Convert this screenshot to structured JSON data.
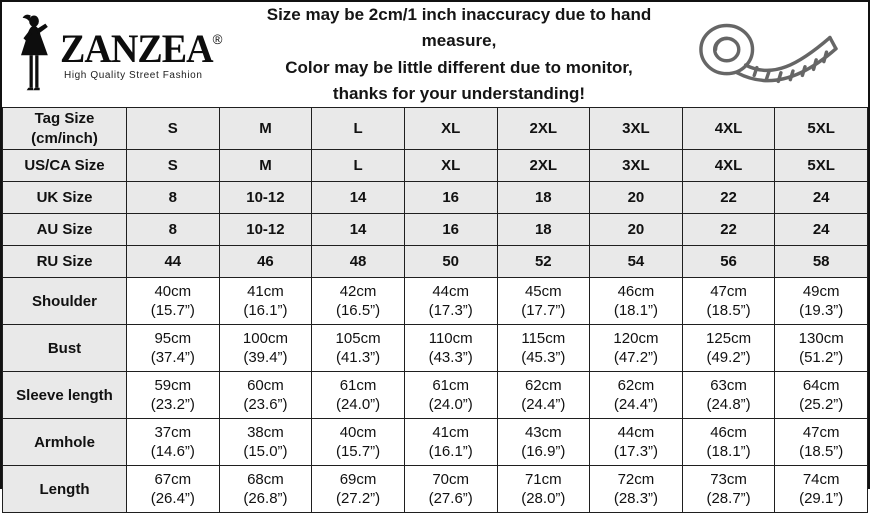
{
  "colors": {
    "cell_shaded": "#e9e9e9",
    "cell_plain": "#ffffff",
    "grid_border": "#1f1f1f",
    "frame_border": "#111111",
    "text": "#111111",
    "icon_gray": "#666666"
  },
  "header": {
    "logo": {
      "brand": "ZANZEA",
      "registered_mark": "®",
      "tagline": "High Quality Street Fashion"
    },
    "disclaimer_lines": [
      "Size may be 2cm/1 inch inaccuracy due to hand measure,",
      "Color may be little different due to monitor,",
      "thanks for your understanding!"
    ]
  },
  "table": {
    "rows": [
      {
        "label": "Tag Size\n(cm/inch)",
        "shaded": true,
        "values": [
          "S",
          "M",
          "L",
          "XL",
          "2XL",
          "3XL",
          "4XL",
          "5XL"
        ]
      },
      {
        "label": "US/CA Size",
        "shaded": true,
        "values": [
          "S",
          "M",
          "L",
          "XL",
          "2XL",
          "3XL",
          "4XL",
          "5XL"
        ]
      },
      {
        "label": "UK Size",
        "shaded": true,
        "values": [
          "8",
          "10-12",
          "14",
          "16",
          "18",
          "20",
          "22",
          "24"
        ]
      },
      {
        "label": "AU Size",
        "shaded": true,
        "values": [
          "8",
          "10-12",
          "14",
          "16",
          "18",
          "20",
          "22",
          "24"
        ]
      },
      {
        "label": "RU Size",
        "shaded": true,
        "values": [
          "44",
          "46",
          "48",
          "50",
          "52",
          "54",
          "56",
          "58"
        ]
      },
      {
        "label": "Shoulder",
        "shaded": false,
        "values": [
          "40cm\n(15.7”)",
          "41cm\n(16.1”)",
          "42cm\n(16.5”)",
          "44cm\n(17.3”)",
          "45cm\n(17.7”)",
          "46cm\n(18.1”)",
          "47cm\n(18.5”)",
          "49cm\n(19.3”)"
        ]
      },
      {
        "label": "Bust",
        "shaded": false,
        "values": [
          "95cm\n(37.4”)",
          "100cm\n(39.4”)",
          "105cm\n(41.3”)",
          "110cm\n(43.3”)",
          "115cm\n(45.3”)",
          "120cm\n(47.2”)",
          "125cm\n(49.2”)",
          "130cm\n(51.2”)"
        ]
      },
      {
        "label": "Sleeve length",
        "shaded": false,
        "values": [
          "59cm\n(23.2”)",
          "60cm\n(23.6”)",
          "61cm\n(24.0”)",
          "61cm\n(24.0”)",
          "62cm\n(24.4”)",
          "62cm\n(24.4”)",
          "63cm\n(24.8”)",
          "64cm\n(25.2”)"
        ]
      },
      {
        "label": "Armhole",
        "shaded": false,
        "values": [
          "37cm\n(14.6”)",
          "38cm\n(15.0”)",
          "40cm\n(15.7”)",
          "41cm\n(16.1”)",
          "43cm\n(16.9”)",
          "44cm\n(17.3”)",
          "46cm\n(18.1”)",
          "47cm\n(18.5”)"
        ]
      },
      {
        "label": "Length",
        "shaded": false,
        "values": [
          "67cm\n(26.4”)",
          "68cm\n(26.8”)",
          "69cm\n(27.2”)",
          "70cm\n(27.6”)",
          "71cm\n(28.0”)",
          "72cm\n(28.3”)",
          "73cm\n(28.7”)",
          "74cm\n(29.1”)"
        ]
      }
    ]
  }
}
